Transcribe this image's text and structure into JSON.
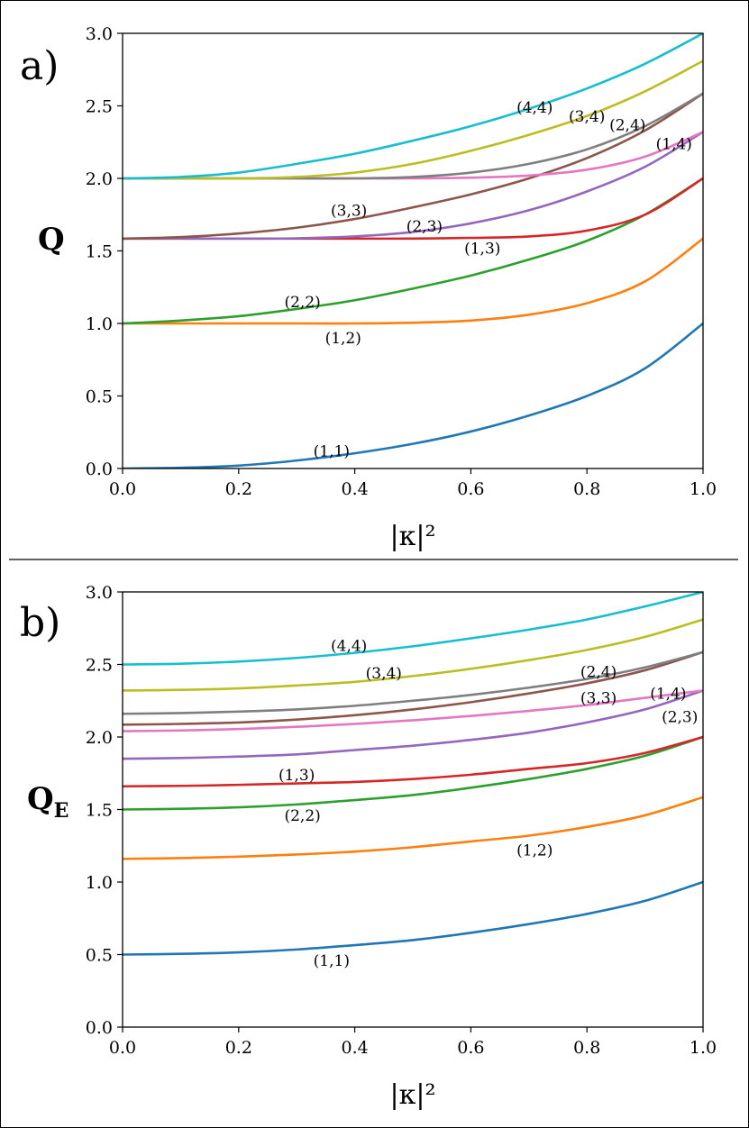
{
  "chart_data": [
    {
      "type": "line",
      "panel_label": "a)",
      "xlabel": "|κ|²",
      "ylabel": "Q",
      "ylabel_sub": "",
      "xlim": [
        0,
        1
      ],
      "ylim": [
        0,
        3
      ],
      "xticks": [
        "0.0",
        "0.2",
        "0.4",
        "0.6",
        "0.8",
        "1.0"
      ],
      "yticks": [
        "0.0",
        "0.5",
        "1.0",
        "1.5",
        "2.0",
        "2.5",
        "3.0"
      ],
      "series": [
        {
          "name": "(1,1)",
          "color": "#1f77b4",
          "x": [
            0,
            0.1,
            0.2,
            0.3,
            0.4,
            0.5,
            0.6,
            0.7,
            0.8,
            0.9,
            1.0
          ],
          "y": [
            0,
            0.005,
            0.02,
            0.055,
            0.105,
            0.17,
            0.255,
            0.365,
            0.5,
            0.69,
            1.0
          ],
          "label_at": [
            0.36,
            0.12
          ]
        },
        {
          "name": "(1,2)",
          "color": "#ff7f0e",
          "x": [
            0,
            0.1,
            0.2,
            0.3,
            0.4,
            0.5,
            0.6,
            0.7,
            0.8,
            0.9,
            1.0
          ],
          "y": [
            1.0,
            1.0,
            1.0,
            1.0,
            1.0,
            1.005,
            1.02,
            1.06,
            1.14,
            1.29,
            1.585
          ],
          "label_at": [
            0.38,
            0.9
          ]
        },
        {
          "name": "(2,2)",
          "color": "#2ca02c",
          "x": [
            0,
            0.1,
            0.2,
            0.3,
            0.4,
            0.5,
            0.6,
            0.7,
            0.8,
            0.9,
            1.0
          ],
          "y": [
            1.0,
            1.02,
            1.05,
            1.1,
            1.16,
            1.24,
            1.33,
            1.44,
            1.57,
            1.75,
            2.0
          ],
          "label_at": [
            0.31,
            1.15
          ]
        },
        {
          "name": "(1,3)",
          "color": "#d62728",
          "x": [
            0,
            0.1,
            0.2,
            0.3,
            0.4,
            0.5,
            0.6,
            0.7,
            0.8,
            0.9,
            1.0
          ],
          "y": [
            1.585,
            1.585,
            1.585,
            1.585,
            1.585,
            1.585,
            1.59,
            1.6,
            1.64,
            1.75,
            2.0
          ],
          "label_at": [
            0.62,
            1.52
          ]
        },
        {
          "name": "(2,3)",
          "color": "#9467bd",
          "x": [
            0,
            0.1,
            0.2,
            0.3,
            0.4,
            0.5,
            0.6,
            0.7,
            0.8,
            0.9,
            1.0
          ],
          "y": [
            1.585,
            1.585,
            1.585,
            1.587,
            1.6,
            1.63,
            1.69,
            1.78,
            1.91,
            2.08,
            2.32
          ],
          "label_at": [
            0.52,
            1.67
          ]
        },
        {
          "name": "(3,3)",
          "color": "#8c564b",
          "x": [
            0,
            0.1,
            0.2,
            0.3,
            0.4,
            0.5,
            0.6,
            0.7,
            0.8,
            0.9,
            1.0
          ],
          "y": [
            1.585,
            1.595,
            1.62,
            1.66,
            1.72,
            1.8,
            1.89,
            2.0,
            2.14,
            2.33,
            2.585
          ],
          "label_at": [
            0.39,
            1.78
          ]
        },
        {
          "name": "(1,4)",
          "color": "#e377c2",
          "x": [
            0,
            0.1,
            0.2,
            0.3,
            0.4,
            0.5,
            0.6,
            0.7,
            0.8,
            0.9,
            1.0
          ],
          "y": [
            2.0,
            2.0,
            2.0,
            2.0,
            2.0,
            2.0,
            2.005,
            2.02,
            2.06,
            2.15,
            2.32
          ],
          "label_at": [
            0.95,
            2.24
          ]
        },
        {
          "name": "(2,4)",
          "color": "#7f7f7f",
          "x": [
            0,
            0.1,
            0.2,
            0.3,
            0.4,
            0.5,
            0.6,
            0.7,
            0.8,
            0.9,
            1.0
          ],
          "y": [
            2.0,
            2.0,
            2.0,
            2.0,
            2.0,
            2.01,
            2.04,
            2.1,
            2.2,
            2.36,
            2.585
          ],
          "label_at": [
            0.87,
            2.37
          ]
        },
        {
          "name": "(3,4)",
          "color": "#bcbd22",
          "x": [
            0,
            0.1,
            0.2,
            0.3,
            0.4,
            0.5,
            0.6,
            0.7,
            0.8,
            0.9,
            1.0
          ],
          "y": [
            2.0,
            2.0,
            2.0,
            2.01,
            2.04,
            2.1,
            2.19,
            2.3,
            2.43,
            2.6,
            2.81
          ],
          "label_at": [
            0.8,
            2.43
          ]
        },
        {
          "name": "(4,4)",
          "color": "#17becf",
          "x": [
            0,
            0.1,
            0.2,
            0.3,
            0.4,
            0.5,
            0.6,
            0.7,
            0.8,
            0.9,
            1.0
          ],
          "y": [
            2.0,
            2.01,
            2.04,
            2.1,
            2.17,
            2.26,
            2.36,
            2.48,
            2.62,
            2.79,
            3.0
          ],
          "label_at": [
            0.71,
            2.49
          ]
        }
      ]
    },
    {
      "type": "line",
      "panel_label": "b)",
      "xlabel": "|κ|²",
      "ylabel": "Q",
      "ylabel_sub": "E",
      "xlim": [
        0,
        1
      ],
      "ylim": [
        0,
        3
      ],
      "xticks": [
        "0.0",
        "0.2",
        "0.4",
        "0.6",
        "0.8",
        "1.0"
      ],
      "yticks": [
        "0.0",
        "0.5",
        "1.0",
        "1.5",
        "2.0",
        "2.5",
        "3.0"
      ],
      "series": [
        {
          "name": "(1,1)",
          "color": "#1f77b4",
          "x": [
            0,
            0.1,
            0.2,
            0.3,
            0.4,
            0.5,
            0.6,
            0.7,
            0.8,
            0.9,
            1.0
          ],
          "y": [
            0.5,
            0.505,
            0.515,
            0.535,
            0.565,
            0.6,
            0.65,
            0.71,
            0.78,
            0.87,
            1.0
          ],
          "label_at": [
            0.36,
            0.46
          ]
        },
        {
          "name": "(1,2)",
          "color": "#ff7f0e",
          "x": [
            0,
            0.1,
            0.2,
            0.3,
            0.4,
            0.5,
            0.6,
            0.7,
            0.8,
            0.9,
            1.0
          ],
          "y": [
            1.16,
            1.165,
            1.175,
            1.19,
            1.21,
            1.24,
            1.28,
            1.32,
            1.38,
            1.46,
            1.585
          ],
          "label_at": [
            0.71,
            1.22
          ]
        },
        {
          "name": "(2,2)",
          "color": "#2ca02c",
          "x": [
            0,
            0.1,
            0.2,
            0.3,
            0.4,
            0.5,
            0.6,
            0.7,
            0.8,
            0.9,
            1.0
          ],
          "y": [
            1.5,
            1.505,
            1.515,
            1.535,
            1.565,
            1.6,
            1.65,
            1.71,
            1.78,
            1.87,
            2.0
          ],
          "label_at": [
            0.31,
            1.46
          ]
        },
        {
          "name": "(1,3)",
          "color": "#d62728",
          "x": [
            0,
            0.1,
            0.2,
            0.3,
            0.4,
            0.5,
            0.6,
            0.7,
            0.8,
            0.9,
            1.0
          ],
          "y": [
            1.66,
            1.663,
            1.67,
            1.68,
            1.69,
            1.71,
            1.74,
            1.78,
            1.82,
            1.89,
            2.0
          ],
          "label_at": [
            0.3,
            1.74
          ]
        },
        {
          "name": "(2,3)",
          "color": "#9467bd",
          "x": [
            0,
            0.1,
            0.2,
            0.3,
            0.4,
            0.5,
            0.6,
            0.7,
            0.8,
            0.9,
            1.0
          ],
          "y": [
            1.85,
            1.855,
            1.865,
            1.88,
            1.91,
            1.94,
            1.98,
            2.03,
            2.1,
            2.19,
            2.32
          ],
          "label_at": [
            0.96,
            2.14
          ]
        },
        {
          "name": "(3,3)",
          "color": "#8c564b",
          "x": [
            0,
            0.1,
            0.2,
            0.3,
            0.4,
            0.5,
            0.6,
            0.7,
            0.8,
            0.9,
            1.0
          ],
          "y": [
            2.085,
            2.09,
            2.1,
            2.12,
            2.15,
            2.19,
            2.24,
            2.3,
            2.37,
            2.46,
            2.585
          ],
          "label_at": [
            0.82,
            2.27
          ]
        },
        {
          "name": "(1,4)",
          "color": "#e377c2",
          "x": [
            0,
            0.1,
            0.2,
            0.3,
            0.4,
            0.5,
            0.6,
            0.7,
            0.8,
            0.9,
            1.0
          ],
          "y": [
            2.04,
            2.045,
            2.055,
            2.07,
            2.09,
            2.115,
            2.145,
            2.18,
            2.22,
            2.27,
            2.32
          ],
          "label_at": [
            0.94,
            2.3
          ]
        },
        {
          "name": "(2,4)",
          "color": "#7f7f7f",
          "x": [
            0,
            0.1,
            0.2,
            0.3,
            0.4,
            0.5,
            0.6,
            0.7,
            0.8,
            0.9,
            1.0
          ],
          "y": [
            2.16,
            2.165,
            2.175,
            2.19,
            2.215,
            2.25,
            2.29,
            2.34,
            2.4,
            2.48,
            2.585
          ],
          "label_at": [
            0.82,
            2.45
          ]
        },
        {
          "name": "(3,4)",
          "color": "#bcbd22",
          "x": [
            0,
            0.1,
            0.2,
            0.3,
            0.4,
            0.5,
            0.6,
            0.7,
            0.8,
            0.9,
            1.0
          ],
          "y": [
            2.32,
            2.325,
            2.335,
            2.355,
            2.38,
            2.42,
            2.47,
            2.53,
            2.6,
            2.69,
            2.81
          ],
          "label_at": [
            0.45,
            2.44
          ]
        },
        {
          "name": "(4,4)",
          "color": "#17becf",
          "x": [
            0,
            0.1,
            0.2,
            0.3,
            0.4,
            0.5,
            0.6,
            0.7,
            0.8,
            0.9,
            1.0
          ],
          "y": [
            2.5,
            2.505,
            2.52,
            2.545,
            2.58,
            2.625,
            2.68,
            2.74,
            2.81,
            2.9,
            3.0
          ],
          "label_at": [
            0.39,
            2.63
          ]
        }
      ]
    }
  ]
}
